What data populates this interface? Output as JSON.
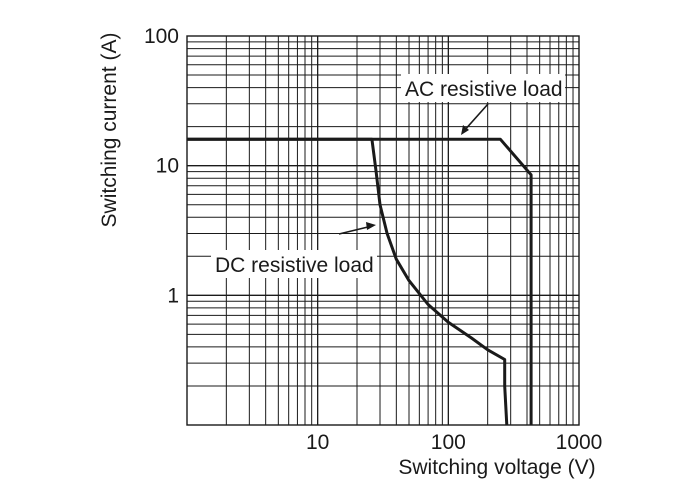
{
  "chart_data": {
    "type": "line",
    "title": "",
    "xlabel": "Switching voltage (V)",
    "ylabel": "Switching current (A)",
    "x_scale": "log",
    "y_scale": "log",
    "xlim": [
      1,
      1000
    ],
    "ylim": [
      0.1,
      100
    ],
    "x_ticks": [
      {
        "value": 10,
        "label": "10"
      },
      {
        "value": 100,
        "label": "100"
      },
      {
        "value": 1000,
        "label": "1000"
      }
    ],
    "y_ticks": [
      {
        "value": 1,
        "label": "1"
      },
      {
        "value": 10,
        "label": "10"
      },
      {
        "value": 100,
        "label": "100"
      }
    ],
    "grid": true,
    "series": [
      {
        "name": "AC resistive load",
        "x": [
          1,
          250,
          430,
          430
        ],
        "y": [
          16,
          16,
          8.5,
          0.1
        ]
      },
      {
        "name": "DC resistive load",
        "x": [
          1,
          26,
          28,
          30,
          34,
          40,
          50,
          70,
          100,
          150,
          200,
          270,
          270,
          280
        ],
        "y": [
          16,
          16,
          9,
          5,
          3,
          1.9,
          1.3,
          0.85,
          0.62,
          0.47,
          0.38,
          0.32,
          0.2,
          0.1
        ]
      }
    ],
    "annotations": [
      {
        "text": "AC resistive load",
        "target_series": "AC resistive load"
      },
      {
        "text": "DC resistive load",
        "target_series": "DC resistive load"
      }
    ]
  }
}
